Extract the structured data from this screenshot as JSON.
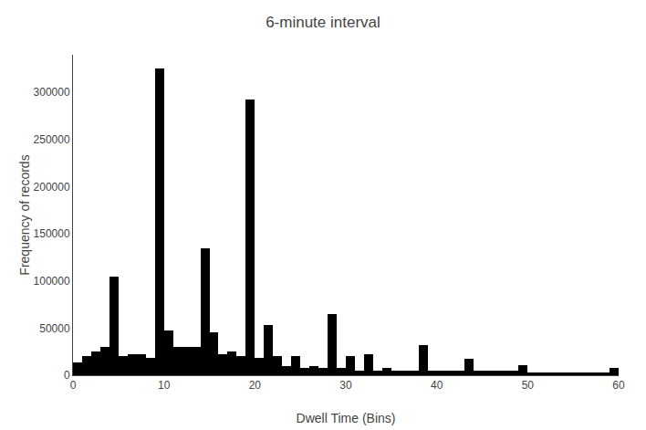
{
  "chart_data": {
    "type": "histogram",
    "title": "6-minute interval",
    "xlabel": "Dwell Time (Bins)",
    "ylabel": "Frequency of records",
    "color": "#000000",
    "bins": [
      0,
      1,
      2,
      3,
      4,
      5,
      6,
      7,
      8,
      9,
      10,
      11,
      12,
      13,
      14,
      15,
      16,
      17,
      18,
      19,
      20,
      21,
      22,
      23,
      24,
      25,
      26,
      27,
      28,
      29,
      30,
      31,
      32,
      33,
      34,
      35,
      36,
      37,
      38,
      39,
      40,
      41,
      42,
      43,
      44,
      45,
      46,
      47,
      48,
      49,
      50,
      51,
      52,
      53,
      54,
      55,
      56,
      57,
      58,
      59,
      60
    ],
    "values": [
      14000,
      20000,
      25000,
      30000,
      105000,
      20000,
      22000,
      22000,
      18000,
      325000,
      47000,
      30000,
      30000,
      30000,
      135000,
      46000,
      22000,
      25000,
      20000,
      293000,
      18000,
      53000,
      20000,
      10000,
      20000,
      8000,
      10000,
      8000,
      65000,
      8000,
      20000,
      5000,
      22000,
      5000,
      8000,
      5000,
      5000,
      5000,
      32000,
      5000,
      5000,
      5000,
      5000,
      17000,
      5000,
      5000,
      5000,
      5000,
      5000,
      11000,
      3000,
      3000,
      3000,
      3000,
      3000,
      3000,
      3000,
      3000,
      3000,
      8000
    ],
    "xlim": [
      0,
      60
    ],
    "xticks": [
      0,
      10,
      20,
      30,
      40,
      50,
      60
    ],
    "ylim": [
      0,
      340000
    ],
    "yticks": [
      0,
      50000,
      100000,
      150000,
      200000,
      250000,
      300000
    ],
    "grid": false
  }
}
